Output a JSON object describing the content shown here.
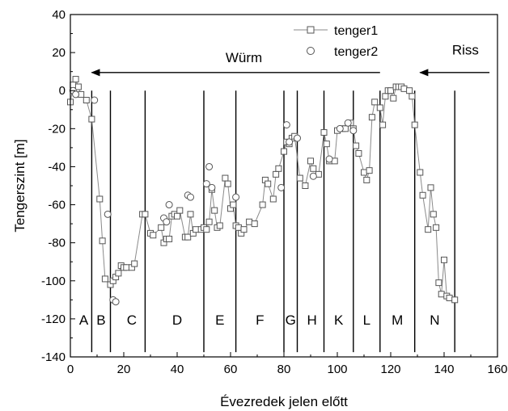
{
  "chart_data": {
    "type": "scatter",
    "xlabel": "Évezredek jelen előtt",
    "ylabel": "Tengerszint [m]",
    "xlim": [
      0,
      160
    ],
    "ylim": [
      -140,
      40
    ],
    "x_ticks": [
      0,
      20,
      40,
      60,
      80,
      100,
      120,
      140,
      160
    ],
    "y_ticks": [
      -140,
      -120,
      -100,
      -80,
      -60,
      -40,
      -20,
      0,
      20,
      40
    ],
    "grid": false,
    "legend_position": "top-center",
    "series": [
      {
        "name": "tenger1",
        "marker": "square",
        "connected": true,
        "color": "#555555",
        "x": [
          0,
          1,
          2,
          3,
          4,
          6,
          8,
          11,
          12,
          13,
          15,
          16,
          17,
          18,
          19,
          20,
          21,
          23,
          24,
          27,
          28,
          30,
          31,
          34,
          35,
          36,
          37,
          38,
          39,
          40,
          41,
          43,
          44,
          45,
          46,
          47,
          49,
          50,
          51,
          52,
          53,
          54,
          55,
          56,
          58,
          59,
          60,
          61,
          62,
          63,
          64,
          65,
          67,
          69,
          72,
          73,
          74,
          76,
          77,
          78,
          80,
          81,
          82,
          83,
          84,
          86,
          88,
          90,
          91,
          93,
          95,
          96,
          97,
          99,
          100,
          102,
          103,
          105,
          106,
          107,
          108,
          110,
          111,
          112,
          113,
          114,
          116,
          117,
          118,
          119,
          120,
          121,
          122,
          123,
          124,
          125,
          127,
          128,
          129,
          131,
          132,
          134,
          135,
          136,
          137,
          138,
          139,
          140,
          141,
          142,
          144
        ],
        "y": [
          -6,
          3,
          6,
          2,
          -2,
          -5,
          -15,
          -57,
          -79,
          -99,
          -102,
          -100,
          -98,
          -96,
          -92,
          -93,
          -93,
          -93,
          -91,
          -65,
          -65,
          -75,
          -76,
          -72,
          -80,
          -78,
          -78,
          -66,
          -65,
          -66,
          -63,
          -77,
          -77,
          -65,
          -75,
          -73,
          -73,
          -72,
          -73,
          -69,
          -52,
          -63,
          -72,
          -71,
          -46,
          -49,
          -62,
          -60,
          -71,
          -72,
          -75,
          -73,
          -69,
          -70,
          -60,
          -47,
          -49,
          -57,
          -44,
          -41,
          -32,
          -27,
          -28,
          -25,
          -24,
          -46,
          -50,
          -37,
          -41,
          -44,
          -22,
          -28,
          -37,
          -37,
          -21,
          -20,
          -20,
          -17,
          -20,
          -29,
          -33,
          -43,
          -47,
          -42,
          -14,
          -6,
          -9,
          -18,
          -3,
          0,
          0,
          -4,
          2,
          2,
          2,
          1,
          0,
          -3,
          -18,
          -43,
          -55,
          -73,
          -51,
          -65,
          -72,
          -101,
          -107,
          -89,
          -108,
          -109,
          -110
        ]
      },
      {
        "name": "tenger2",
        "marker": "circle",
        "connected": false,
        "color": "#555555",
        "x": [
          1,
          2,
          9,
          14,
          16,
          17,
          35,
          36,
          37,
          44,
          45,
          51,
          52,
          53,
          62,
          79,
          81,
          82,
          85,
          91,
          97,
          101,
          104,
          106
        ],
        "y": [
          0,
          -2,
          -5,
          -65,
          -110,
          -111,
          -67,
          -69,
          -60,
          -55,
          -56,
          -49,
          -40,
          -51,
          -56,
          -51,
          -18,
          -27,
          -25,
          -45,
          -36,
          -20,
          -17,
          -21
        ]
      }
    ],
    "zone_boundaries": [
      8,
      15,
      28,
      50,
      62,
      80,
      85,
      95,
      106,
      116,
      129,
      144
    ],
    "zone_labels": [
      {
        "text": "A",
        "x": 5
      },
      {
        "text": "B",
        "x": 11.5
      },
      {
        "text": "C",
        "x": 23
      },
      {
        "text": "D",
        "x": 40
      },
      {
        "text": "E",
        "x": 56
      },
      {
        "text": "F",
        "x": 71
      },
      {
        "text": "G",
        "x": 82.5
      },
      {
        "text": "H",
        "x": 90.5
      },
      {
        "text": "K",
        "x": 100.5
      },
      {
        "text": "L",
        "x": 111
      },
      {
        "text": "M",
        "x": 122.5
      },
      {
        "text": "N",
        "x": 136.5
      }
    ],
    "annotations": [
      {
        "text": "Würm",
        "x": 65,
        "y": 15,
        "arrow_from": 116,
        "arrow_to": 8,
        "arrow_y": 9.5
      },
      {
        "text": "Riss",
        "x": 148,
        "y": 19,
        "arrow_from": 157,
        "arrow_to": 131,
        "arrow_y": 9.5
      }
    ]
  }
}
